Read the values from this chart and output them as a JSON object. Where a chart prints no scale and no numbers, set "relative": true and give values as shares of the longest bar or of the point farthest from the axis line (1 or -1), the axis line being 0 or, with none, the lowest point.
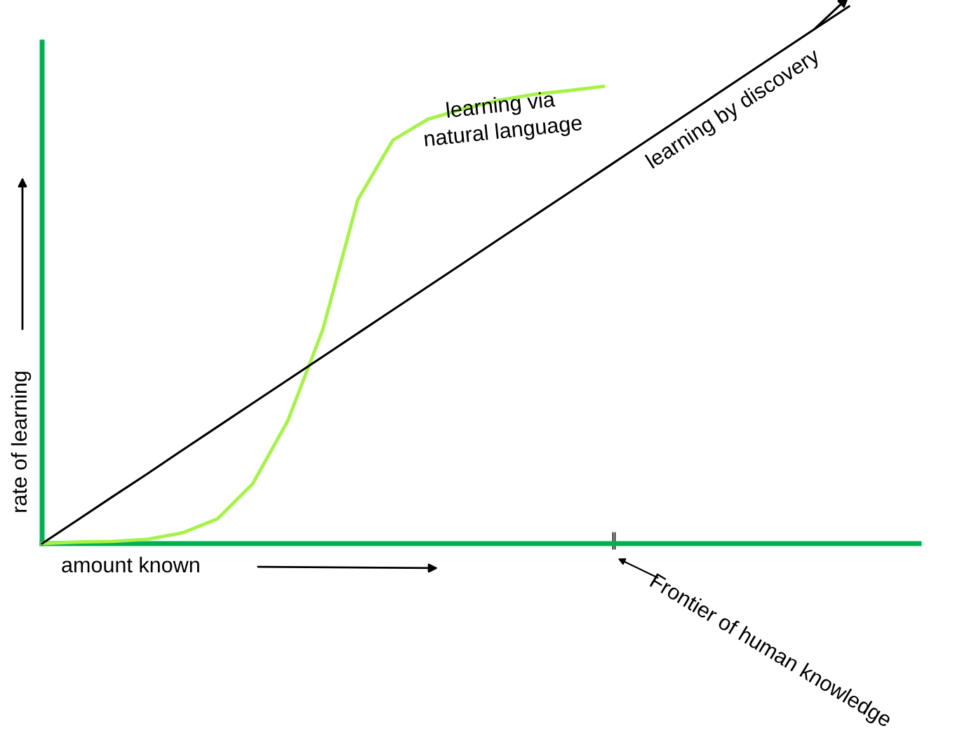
{
  "chart_data": {
    "type": "line",
    "relative": true,
    "categories": [
      null,
      null,
      null,
      null,
      null,
      null,
      null,
      null,
      null,
      null,
      null,
      null,
      null,
      null,
      null,
      null,
      null,
      null,
      null,
      null,
      null,
      null,
      null,
      null,
      null,
      null
    ],
    "series": [
      {
        "name": "learning via\nnatural language",
        "color": "#a6f24a",
        "values": [
          0,
          0.003,
          0.004,
          0.008,
          0.02,
          0.046,
          0.111,
          0.228,
          0.398,
          0.64,
          0.751,
          0.79,
          0.809,
          0.825,
          0.836,
          0.843,
          0.851,
          null,
          null,
          null,
          null,
          null,
          null,
          null,
          null,
          null
        ]
      },
      {
        "name": "learning by discovery",
        "color": "#000000",
        "values": [
          0,
          0.0435,
          0.087,
          0.13,
          0.174,
          0.2175,
          0.261,
          0.3045,
          0.348,
          0.3915,
          0.435,
          0.4785,
          0.522,
          0.5655,
          0.609,
          0.6525,
          0.696,
          0.7395,
          0.783,
          0.8265,
          0.87,
          0.9135,
          0.957,
          1.0,
          null,
          null
        ]
      }
    ],
    "xlabel": "amount known",
    "ylabel": "rate of learning",
    "annotations": [
      "Frontier of human knowledge"
    ],
    "marker": "none",
    "line_style": "solid"
  }
}
